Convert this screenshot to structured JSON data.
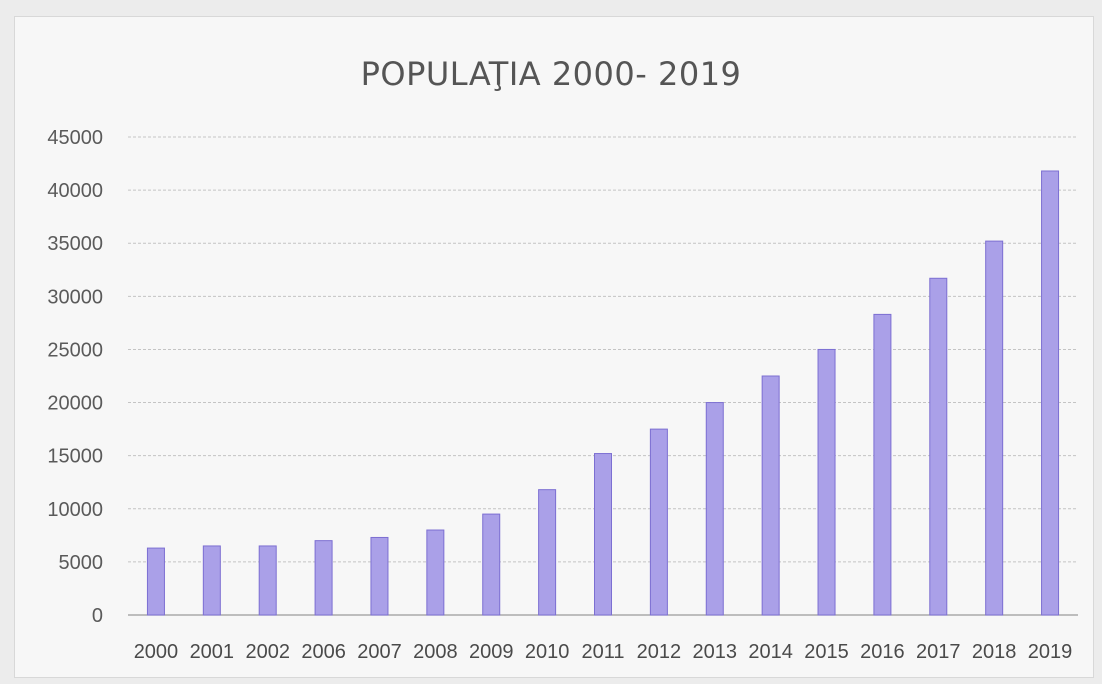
{
  "chart_data": {
    "type": "bar",
    "title": "POPULAŢIA 2000- 2019",
    "xlabel": "",
    "ylabel": "",
    "categories": [
      "2000",
      "2001",
      "2002",
      "2006",
      "2007",
      "2008",
      "2009",
      "2010",
      "2011",
      "2012",
      "2013",
      "2014",
      "2015",
      "2016",
      "2017",
      "2018",
      "2019"
    ],
    "values": [
      6300,
      6500,
      6500,
      7000,
      7300,
      8000,
      9500,
      11800,
      15200,
      17500,
      20000,
      22500,
      25000,
      28300,
      31700,
      35200,
      41800
    ],
    "ylim": [
      0,
      45000
    ],
    "yticks": [
      0,
      5000,
      10000,
      15000,
      20000,
      25000,
      30000,
      35000,
      40000,
      45000
    ],
    "grid": true,
    "legend": "none",
    "colors": {
      "bar_fill": "#aaa0e8",
      "bar_stroke": "#7c6fd2",
      "grid": "#c4c4c4",
      "baseline": "#9a9a9a",
      "text": "#555555"
    }
  }
}
